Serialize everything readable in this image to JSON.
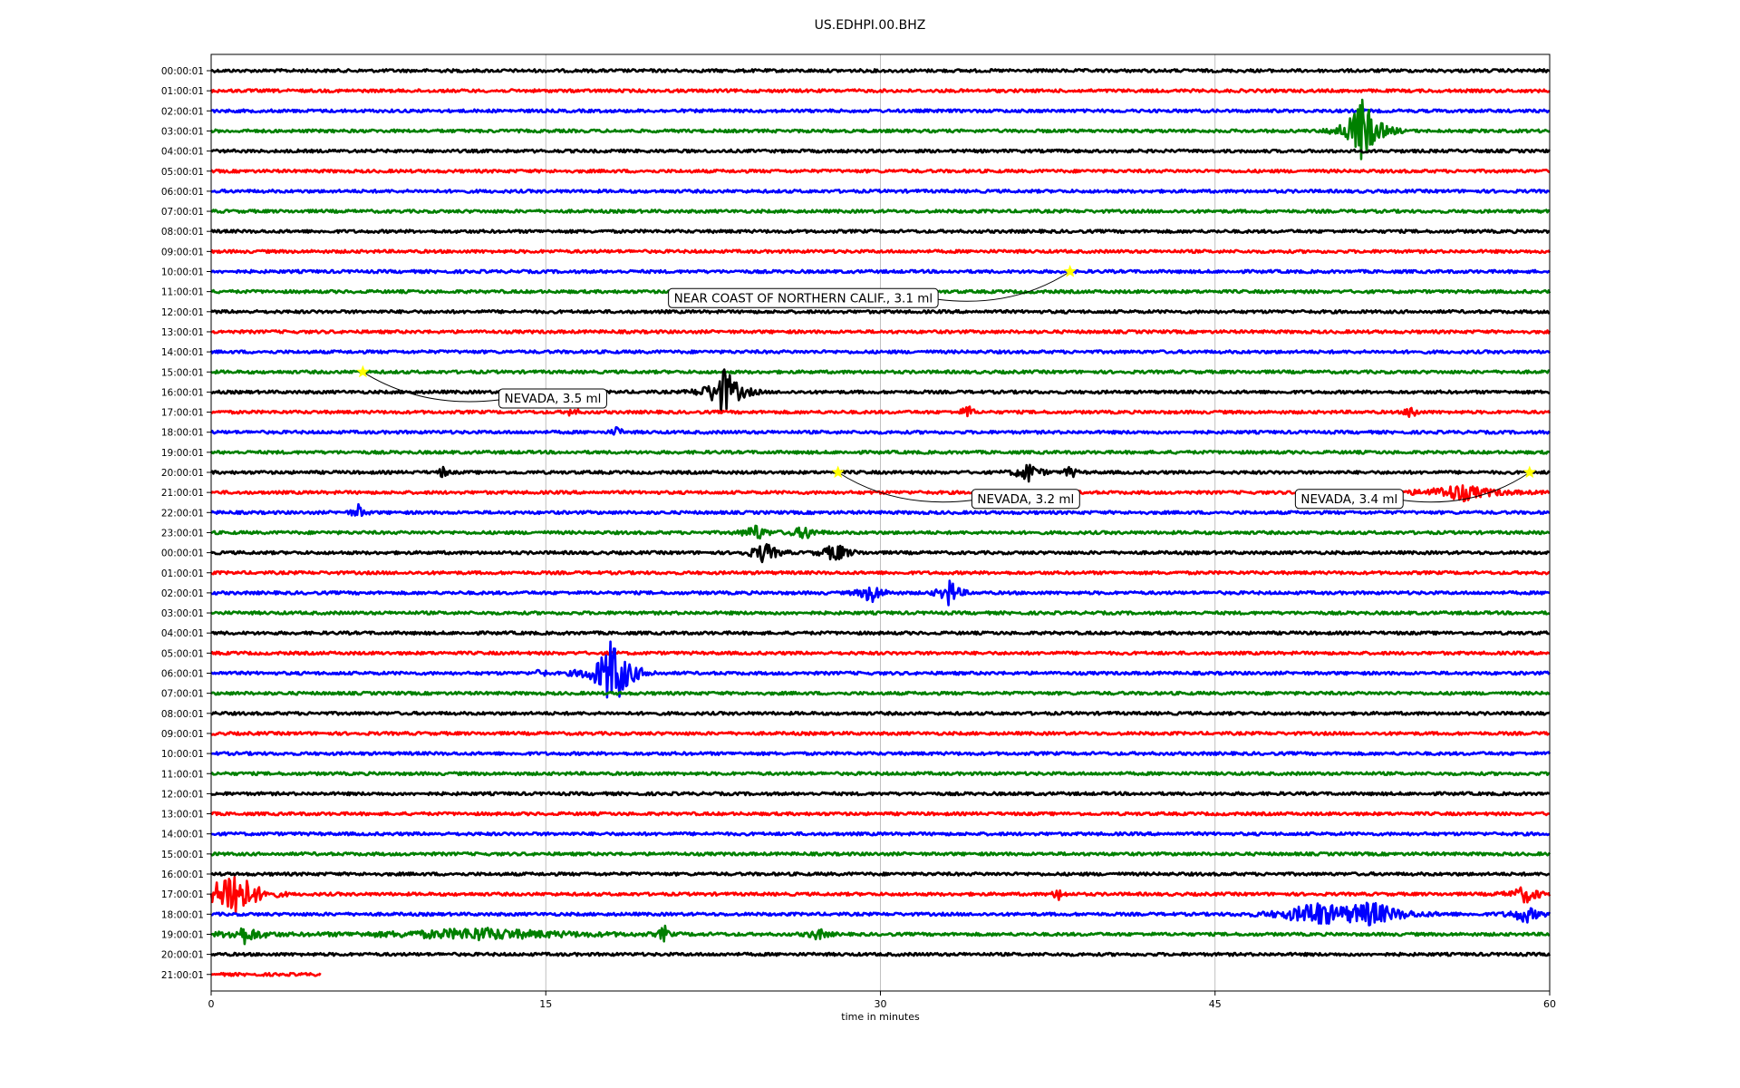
{
  "title": "US.EDHPI.00.BHZ",
  "chart_data": {
    "type": "line",
    "title": "US.EDHPI.00.BHZ",
    "xlabel": "time in minutes",
    "ylabel": "",
    "xlim": [
      0,
      60
    ],
    "x_ticks": [
      "0",
      "15",
      "30",
      "45",
      "60"
    ],
    "grid": "vertical at x ticks",
    "trace_colors": [
      "#000000",
      "#ff0000",
      "#0000ff",
      "#008000"
    ],
    "rows": [
      "00:00:01",
      "01:00:01",
      "02:00:01",
      "03:00:01",
      "04:00:01",
      "05:00:01",
      "06:00:01",
      "07:00:01",
      "08:00:01",
      "09:00:01",
      "10:00:01",
      "11:00:01",
      "12:00:01",
      "13:00:01",
      "14:00:01",
      "15:00:01",
      "16:00:01",
      "17:00:01",
      "18:00:01",
      "19:00:01",
      "20:00:01",
      "21:00:01",
      "22:00:01",
      "23:00:01",
      "00:00:01",
      "01:00:01",
      "02:00:01",
      "03:00:01",
      "04:00:01",
      "05:00:01",
      "06:00:01",
      "07:00:01",
      "08:00:01",
      "09:00:01",
      "10:00:01",
      "11:00:01",
      "12:00:01",
      "13:00:01",
      "14:00:01",
      "15:00:01",
      "16:00:01",
      "17:00:01",
      "18:00:01",
      "19:00:01",
      "20:00:01",
      "21:00:01"
    ],
    "last_row_end_minute": 4.9,
    "bursts": [
      {
        "row": 3,
        "minute": 51.6,
        "amp": 5,
        "width": 0.9
      },
      {
        "row": 16,
        "minute": 23.0,
        "amp": 3.5,
        "width": 0.9
      },
      {
        "row": 17,
        "minute": 33.9,
        "amp": 1.3,
        "width": 0.2
      },
      {
        "row": 17,
        "minute": 53.8,
        "amp": 1.4,
        "width": 0.2
      },
      {
        "row": 17,
        "minute": 16.2,
        "amp": 0.8,
        "width": 0.2
      },
      {
        "row": 18,
        "minute": 18.2,
        "amp": 0.8,
        "width": 0.2
      },
      {
        "row": 20,
        "minute": 36.6,
        "amp": 1.5,
        "width": 0.6
      },
      {
        "row": 20,
        "minute": 38.5,
        "amp": 1.2,
        "width": 0.2
      },
      {
        "row": 20,
        "minute": 10.4,
        "amp": 0.8,
        "width": 0.2
      },
      {
        "row": 21,
        "minute": 56.0,
        "amp": 1.2,
        "width": 2.0
      },
      {
        "row": 22,
        "minute": 6.6,
        "amp": 1.0,
        "width": 0.3
      },
      {
        "row": 23,
        "minute": 24.4,
        "amp": 1.2,
        "width": 0.6
      },
      {
        "row": 23,
        "minute": 26.6,
        "amp": 1.0,
        "width": 0.6
      },
      {
        "row": 24,
        "minute": 24.8,
        "amp": 1.5,
        "width": 0.7
      },
      {
        "row": 24,
        "minute": 28.0,
        "amp": 1.4,
        "width": 0.7
      },
      {
        "row": 26,
        "minute": 29.6,
        "amp": 1.5,
        "width": 0.6
      },
      {
        "row": 26,
        "minute": 33.1,
        "amp": 2.0,
        "width": 0.5
      },
      {
        "row": 30,
        "minute": 18.0,
        "amp": 5.5,
        "width": 1.0
      },
      {
        "row": 30,
        "minute": 14.8,
        "amp": 0.8,
        "width": 0.2
      },
      {
        "row": 41,
        "minute": 1.0,
        "amp": 4.5,
        "width": 1.2
      },
      {
        "row": 41,
        "minute": 38.0,
        "amp": 1.0,
        "width": 0.2
      },
      {
        "row": 41,
        "minute": 58.9,
        "amp": 1.2,
        "width": 0.8
      },
      {
        "row": 42,
        "minute": 49.5,
        "amp": 1.6,
        "width": 2.0
      },
      {
        "row": 42,
        "minute": 52.0,
        "amp": 1.6,
        "width": 2.0
      },
      {
        "row": 42,
        "minute": 58.9,
        "amp": 1.2,
        "width": 0.8
      },
      {
        "row": 43,
        "minute": 1.5,
        "amp": 1.2,
        "width": 1.0
      },
      {
        "row": 43,
        "minute": 12.0,
        "amp": 0.8,
        "width": 6.0
      },
      {
        "row": 43,
        "minute": 20.3,
        "amp": 1.3,
        "width": 0.2
      },
      {
        "row": 43,
        "minute": 27.2,
        "amp": 0.8,
        "width": 0.5
      }
    ],
    "events": [
      {
        "label": "NEAR COAST OF NORTHERN CALIF., 3.1 ml",
        "row": 10,
        "minute": 38.5,
        "label_row": 11.3,
        "label_minute": 20.5
      },
      {
        "label": "NEVADA, 3.5 ml",
        "row": 15,
        "minute": 6.8,
        "label_row": 16.3,
        "label_minute": 12.9
      },
      {
        "label": "NEVADA, 3.2 ml",
        "row": 20,
        "minute": 28.1,
        "label_row": 21.3,
        "label_minute": 34.1
      },
      {
        "label": "NEVADA, 3.4 ml",
        "row": 20,
        "minute": 59.1,
        "label_row": 21.3,
        "label_minute": 48.6
      }
    ],
    "marker_color": "#ffff00"
  }
}
